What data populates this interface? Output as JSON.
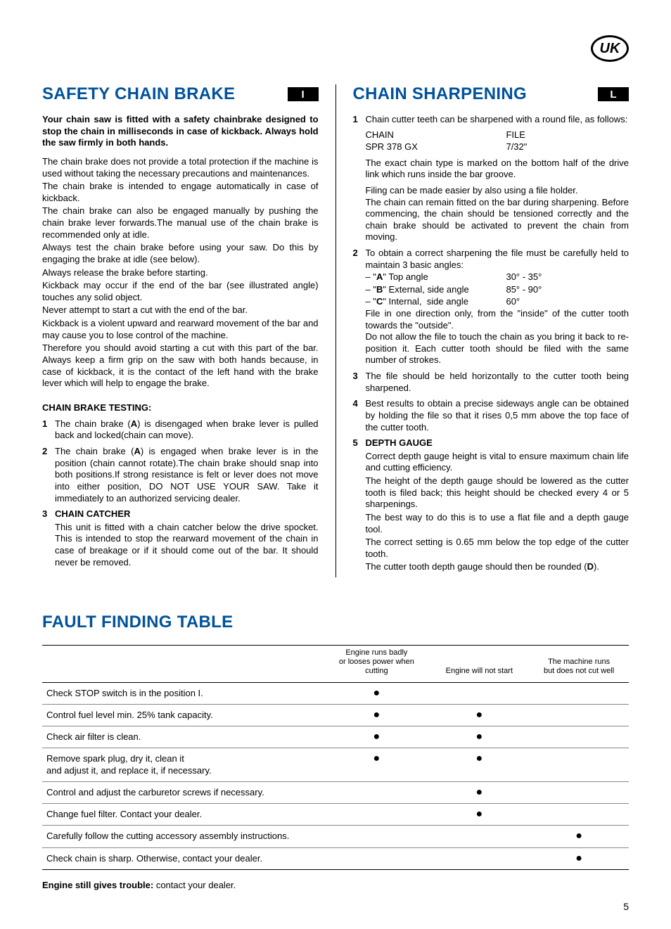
{
  "badge": {
    "region": "UK"
  },
  "left": {
    "title": "SAFETY CHAIN BRAKE",
    "letter": "I",
    "intro_bold": "Your chain saw is fitted with a safety chainbrake designed to stop the chain in milliseconds in case of kickback. Always hold the saw firmly in both hands.",
    "paras": [
      "The chain brake does not provide a total protection if the machine is used without taking the necessary precautions and maintenances.",
      "The chain brake is intended to engage automatically in case of kickback.",
      "The chain brake can also be engaged manually by pushing the chain brake lever forwards.The manual use of the chain brake is recommended only at idle.",
      "Always test the chain brake before using your saw. Do this by engaging the brake at idle (see below).",
      "Always release the brake before starting.",
      "Kickback may occur if the end of the bar (see illustrated angle) touches any solid object.",
      "Never attempt to start a cut with the end of the bar.",
      "Kickback is a violent upward and rearward movement of the bar and may cause you to lose control of the machine.",
      "Therefore you should avoid starting a cut with this part of the bar. Always keep a firm grip on the saw with both hands because, in case of kickback, it is the contact of the left hand with the brake lever which will help to engage the brake."
    ],
    "subhead": "CHAIN BRAKE TESTING:",
    "items": [
      {
        "n": "1",
        "text": "The chain brake (A) is disengaged when brake lever is pulled back and locked(chain can move)."
      },
      {
        "n": "2",
        "text": "The chain brake (A) is engaged when brake lever is in the position (chain cannot rotate).The chain brake should snap into both positions.If strong resistance is felt or lever does not move into either position, DO NOT USE YOUR SAW. Take it immediately to an authorized servicing dealer."
      },
      {
        "n": "3",
        "head": "CHAIN CATCHER",
        "text": "This unit is fitted with a chain catcher below the drive spocket. This is intended to stop the rearward movement of the chain in case of breakage or if it should come out of the bar. It should never be removed."
      }
    ]
  },
  "right": {
    "title": "CHAIN SHARPENING",
    "letter": "L",
    "item1": {
      "n": "1",
      "lead": "Chain cutter teeth can be sharpened with a round file, as follows:",
      "header_chain": "CHAIN",
      "header_file": "FILE",
      "row_chain": "SPR 378 GX",
      "row_file": "7/32\"",
      "after1": "The exact chain type is marked on the bottom half of the drive link which runs inside the bar groove.",
      "after2": "Filing can be made easier by also using a file holder.",
      "after3": "The chain can remain fitted on the bar during sharpening. Before commencing, the chain should be tensioned correctly and the chain brake should be activated to prevent the chain from moving."
    },
    "item2": {
      "n": "2",
      "lead": "To obtain a correct sharpening the file must be carefully held to maintain 3 basic angles:",
      "angle_a_label": "– \"A\" Top angle",
      "angle_a_val": "30° - 35°",
      "angle_b_label": "– \"B\" External, side angle",
      "angle_b_val": "85° - 90°",
      "angle_c_label": "– \"C\" Internal,  side angle",
      "angle_c_val": "60°",
      "after1": "File in one direction only, from the \"inside\" of the cutter tooth towards the \"outside\".",
      "after2": "Do not allow the file to touch the chain as you bring it back to re-position it. Each cutter tooth should be filed with the same number of strokes."
    },
    "item3": {
      "n": "3",
      "text": "The file should be held horizontally to the cutter tooth being sharpened."
    },
    "item4": {
      "n": "4",
      "text": "Best results to obtain a precise sideways angle can be obtained by holding the file so that it rises 0,5 mm above the top face of the cutter tooth."
    },
    "item5": {
      "n": "5",
      "head": "DEPTH GAUGE",
      "p1": "Correct depth gauge height is vital to ensure maximum chain life and cutting efficiency.",
      "p2": "The height of the depth gauge should be lowered as the cutter tooth is filed back; this height should be checked every 4 or 5 sharpenings.",
      "p3": "The best way to do this is to use a flat file and a depth gauge tool.",
      "p4": "The correct setting is 0.65 mm below the top edge of the cutter tooth.",
      "p5": "The cutter tooth depth gauge should then be rounded (D)."
    }
  },
  "fault": {
    "title": "FAULT FINDING TABLE",
    "headers": {
      "c1": "",
      "c2": "Engine runs badly\nor looses power when cutting",
      "c3": "Engine will not start",
      "c4": "The machine runs\nbut does not cut well"
    },
    "rows": [
      {
        "check": "Check STOP switch is in the position I.",
        "d": [
          true,
          false,
          false
        ]
      },
      {
        "check": "Control fuel level min. 25% tank capacity.",
        "d": [
          true,
          true,
          false
        ]
      },
      {
        "check": "Check air filter is clean.",
        "d": [
          true,
          true,
          false
        ]
      },
      {
        "check": "Remove spark plug, dry it, clean it\nand adjust it, and replace it, if necessary.",
        "d": [
          true,
          true,
          false
        ]
      },
      {
        "check": "Control and adjust the carburetor screws if necessary.",
        "d": [
          false,
          true,
          false
        ]
      },
      {
        "check": "Change fuel filter. Contact your dealer.",
        "d": [
          false,
          true,
          false
        ]
      },
      {
        "check": "Carefully follow the cutting accessory assembly instructions.",
        "d": [
          false,
          false,
          true
        ]
      },
      {
        "check": "Check chain is sharp. Otherwise, contact your dealer.",
        "d": [
          false,
          false,
          true
        ]
      }
    ],
    "footer_bold": "Engine still gives trouble:",
    "footer_rest": " contact your dealer."
  },
  "page_number": "5"
}
